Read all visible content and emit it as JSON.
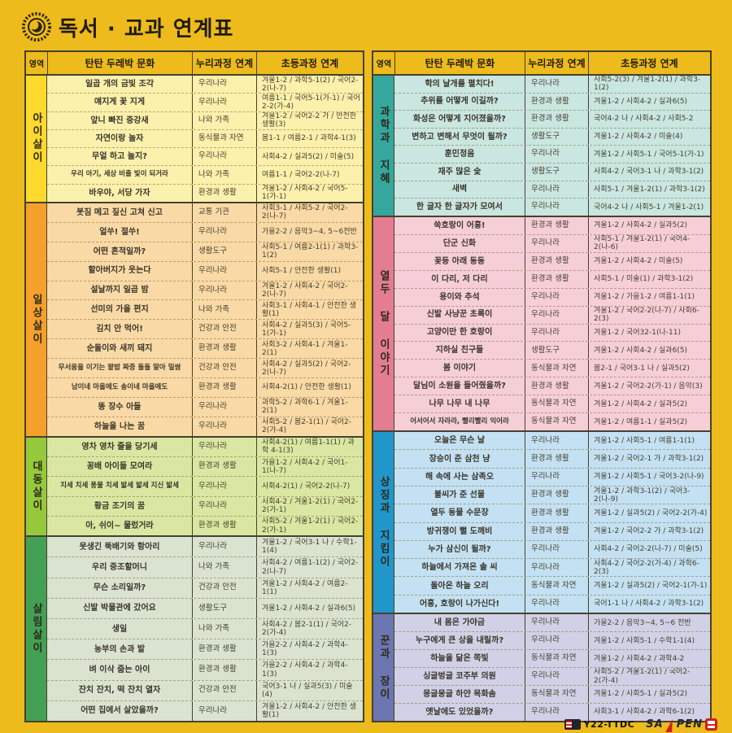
{
  "page": {
    "title": "독서 · 교과 연계표"
  },
  "table_headers": [
    "영역",
    "탄탄 두레박 문화",
    "누리과정 연계",
    "초등과정 연계"
  ],
  "accent": {
    "page_bg": "#EDBB1C",
    "line": "#45412F"
  },
  "tables": [
    {
      "sections": [
        {
          "area": "아이살이",
          "area_color": "#FFD92E",
          "row_color": "#FBF0AC",
          "rows": [
            [
              "일곱 개의 금빛 조각",
              "우리나라",
              "겨울1-2 / 과학5-1(2) / 국어2-2(나-7)"
            ],
            [
              "얘지게 꽃 지게",
              "우리나라",
              "여름1-1 / 국어5-1(가-1) / 국어2-2(가-4)"
            ],
            [
              "앞니 빠진 중강새",
              "나와 가족",
              "겨울1-2 / 국어2-2 가 / 안전한 생활(3)"
            ],
            [
              "자연이랑 놀자",
              "동식물과 자연",
              "봄1-1 / 여름2-1 / 과학4-1(3)"
            ],
            [
              "무얼 하고 놀지?",
              "우리나라",
              "사회4-2 / 실과5(2) / 미술(5)"
            ],
            [
              "우리 아기, 세상 비출 빛이 되거라",
              "나와 가족",
              "여름1-1 / 국어2-2(나-7)"
            ],
            [
              "바우야, 서당 가자",
              "환경과 생활",
              "겨울1-2 / 사회4-2 / 국어5-1(가-1)"
            ]
          ]
        },
        {
          "area": "일상살이",
          "area_color": "#F5A02B",
          "row_color": "#F9D9A5",
          "rows": [
            [
              "봇짐 메고 짚신 고쳐 신고",
              "교통 기관",
              "사회3-1 / 사회5-2 / 국어2-2(나-7)"
            ],
            [
              "얼쑤! 절쑤!",
              "우리나라",
              "가을2-2 / 음악3~4, 5~6전반"
            ],
            [
              "어떤 흔적일까?",
              "생활도구",
              "사회5-1 / 여름2-1(1) / 과학3-1(2)"
            ],
            [
              "할아버지가 웃는다",
              "우리나라",
              "사회5-1 / 안전한 생활(1)"
            ],
            [
              "설날까지 일곱 밤",
              "우리나라",
              "겨울1-2 / 사회4-2 / 국어2-2(나-7)"
            ],
            [
              "선미의 가을 편지",
              "나와 가족",
              "사회3-1 / 사회4-1 / 안전한 생활(1)"
            ],
            [
              "김치 안 먹어!",
              "건강과 안전",
              "사회4-2 / 실과5(3) / 국어5-1(가-1)"
            ],
            [
              "순둘이와 새끼 돼지",
              "환경과 생활",
              "사회3-2 / 사회4-1 / 겨울1-2(1)"
            ],
            [
              "무서움을 이기는 팥밥 짜증 돌돌 말아 밀쌈",
              "건강과 안전",
              "사회4-2 / 실과5(2) / 국어2-2(나-7)"
            ],
            [
              "남이네 마을에도 송이네 마을에도",
              "환경과 생활",
              "사회4-2(1) / 안전한 생활(1)"
            ],
            [
              "똥 장수 아들",
              "우리나라",
              "과학5-2 / 과학6-1 / 겨울1-2(1)"
            ],
            [
              "하늘을 나는 꿈",
              "우리나라",
              "사회5-2 / 봄2-1(1) / 국어2-2(가-4)"
            ]
          ]
        },
        {
          "area": "대동살이",
          "area_color": "#96C83C",
          "row_color": "#D9E7A2",
          "rows": [
            [
              "영차 영차 줄을 당기세",
              "우리나라",
              "사회4-2(1) / 여름1-1(1) / 과학 4-1(3)"
            ],
            [
              "꽁배 아이들 모여라",
              "환경과 생활",
              "가을1-2 / 사회4-2 / 국어1-1(나-7)"
            ],
            [
              "치세 치세 풍물 치세 밟세 밟세 지신 밟세",
              "우리나라",
              "사회4-2(1) / 국어2-2(나-7)"
            ],
            [
              "황금 조기의 꿈",
              "우리나라",
              "사회4-2 / 겨울1-2(1) / 국어2-2(가-1)"
            ],
            [
              "아, 쉬이~ 물렀거라",
              "환경과 생활",
              "사회5-2 / 겨울1-2(1) / 국어2-2(가-1)"
            ]
          ]
        },
        {
          "area": "살림살이",
          "area_color": "#44A054",
          "row_color": "#D9E3D0",
          "rows": [
            [
              "못생긴 뚝배기와 항아리",
              "우리나라",
              "겨울1-2 / 국어3-1 나 / 수학1-1(4)"
            ],
            [
              "우리 증조할머니",
              "나와 가족",
              "사회4-2 / 여름1-1(2) / 국어2-2(나-7)"
            ],
            [
              "무슨 소리일까?",
              "건강과 안전",
              "겨울1-2 / 사회4-2 / 여름2-1(1)"
            ],
            [
              "신발 박물관에 갔어요",
              "생활도구",
              "겨울1-2 / 사회4-2 / 실과6(5)"
            ],
            [
              "생일",
              "나와 가족",
              "사회4-2 / 봄2-1(1) / 국어2-2(가-4)"
            ],
            [
              "농부의 손과 발",
              "환경과 생활",
              "가을2-2 / 사회4-2 / 과학4-1(3)"
            ],
            [
              "벼 이삭 줍는 아이",
              "환경과 생활",
              "가을2-2 / 사회4-2 / 과학4-1(3)"
            ],
            [
              "잔치 잔치, 떡 잔치 열자",
              "건강과 안전",
              "국어3-1 나 / 실과5(3) / 미술(4)"
            ],
            [
              "어떤 집에서 살았을까?",
              "우리나라",
              "겨울1-2 / 사회4-2 / 안전한 생활(1)"
            ]
          ]
        }
      ]
    },
    {
      "sections": [
        {
          "area": "과학과 지혜",
          "area_color": "#35A79C",
          "row_color": "#C9E6E0",
          "rows": [
            [
              "학의 날개를 펼치다!",
              "우리나라",
              "사회5-2(3) / 겨울1-2(1) / 과학3-1(2)"
            ],
            [
              "추위를 어떻게 이길까?",
              "환경과 생활",
              "겨울1-2 / 사회4-2 / 실과6(5)"
            ],
            [
              "화성은 어떻게 지어졌을까?",
              "환경과 생활",
              "국어4-2 나 / 사회4-2 / 사회5-2"
            ],
            [
              "변하고 변해서 무엇이 될까?",
              "생활도구",
              "겨울1-2 / 사회4-2 / 미술(4)"
            ],
            [
              "훈민정음",
              "우리나라",
              "겨울1-2 / 사회5-1 / 국어5-1(가-1)"
            ],
            [
              "재주 많은 숯",
              "생활도구",
              "사회4-2 / 국어3-1 나 / 과학3-1(2)"
            ],
            [
              "새벽",
              "우리나라",
              "사회5-1 / 겨울1-2(1) / 과학3-1(2)"
            ],
            [
              "한 글자 한 글자가 모여서",
              "우리나라",
              "국어4-2 나 / 사회5-1 / 겨울1-2(1)"
            ]
          ]
        },
        {
          "area": "열두 달 이야기",
          "area_color": "#E47D92",
          "row_color": "#F6CED7",
          "rows": [
            [
              "쑥호랑이 어흥!",
              "환경과 생활",
              "겨울1-2 / 사회4-2 / 실과5(2)"
            ],
            [
              "단군 신화",
              "우리나라",
              "사회5-1 / 겨울1-2(1) / 국어4-2(나-6)"
            ],
            [
              "꽃등 아래 동동",
              "환경과 생활",
              "겨울1-2 / 사회4-2 / 미술(5)"
            ],
            [
              "이 다리, 저 다리",
              "환경과 생활",
              "사회5-1 / 미술(1) / 과학3-1(2)"
            ],
            [
              "용이와 추석",
              "우리나라",
              "겨울1-2 / 가을1-2 / 여름1-1(1)"
            ],
            [
              "신발 사냥꾼 초록이",
              "우리나라",
              "겨울1-2 / 국어2-2(나-7) / 사회6-2(3)"
            ],
            [
              "고양이만 한 호랑이",
              "우리나라",
              "겨울1-2 / 국어32-1(나-11)"
            ],
            [
              "지하실 친구들",
              "생활도구",
              "겨울1-2 / 사회4-2 / 실과6(5)"
            ],
            [
              "봄 이야기",
              "동식물과 자연",
              "봄2-1 / 국어3-1 나 / 실과5(2)"
            ],
            [
              "달님이 소원을 들어줬을까?",
              "환경과 생활",
              "겨울1-2 / 국어2-2(가-1) / 음악(3)"
            ],
            [
              "나무 나무 내 나무",
              "동식물과 자연",
              "겨울1-2 / 사회4-2 / 실과5(2)"
            ],
            [
              "어서어서 자라라, 빨리빨리 익어라",
              "동식물과 자연",
              "겨울1-2 / 여름1-1 / 실과5(2)"
            ]
          ]
        },
        {
          "area": "상징과 지킴이",
          "area_color": "#2196CB",
          "row_color": "#C3E1F2",
          "rows": [
            [
              "오늘은 무슨 날",
              "우리나라",
              "겨울1-2 / 사회5-1 / 여름1-1(1)"
            ],
            [
              "장승이 준 삼천 냥",
              "환경과 생활",
              "겨울1-2 / 국어2-1 가 / 과학3-1(2)"
            ],
            [
              "해 속에 사는 삼족오",
              "우리나라",
              "겨울1-2 / 사회5-1 / 국어3-2(나-9)"
            ],
            [
              "불씨가 준 선물",
              "환경과 생활",
              "겨울1-2 / 과학3-1(2) / 국어3-2(나-9)"
            ],
            [
              "열두 동물 수문장",
              "환경과 생활",
              "겨울1-2 / 실과5(2) / 국어2-2(가-4)"
            ],
            [
              "방귀쟁이 뻘 도깨비",
              "환경과 생활",
              "겨울1-2 / 국어2-2 가 / 과학3-1(2)"
            ],
            [
              "누가 삼신이 될까?",
              "우리나라",
              "사회4-2 / 국어2-2(나-7) / 미술(5)"
            ],
            [
              "하늘에서 가져온 솔 씨",
              "우리나라",
              "사회4-2 / 국어2-2(가-4) / 과학6-2(3)"
            ],
            [
              "돌아온 하늘 오리",
              "동식물과 자연",
              "겨울1-2 / 실과5(2) / 국어2-1(가-1)"
            ],
            [
              "어흥, 호랑이 나가신다!",
              "우리나라",
              "국어1-1 나 / 사회4-2 / 과학3-1(2)"
            ]
          ]
        },
        {
          "area": "꾼과 장이",
          "area_color": "#6C76B1",
          "row_color": "#D0D1E6",
          "rows": [
            [
              "내 몸은 가야금",
              "우리나라",
              "가을2-2 / 음악3~4, 5~6 전반"
            ],
            [
              "누구에게 큰 상을 내릴까?",
              "우리나라",
              "겨울1-2 / 사회5-1 / 수학1-1(4)"
            ],
            [
              "하늘을 닮은 쪽빛",
              "동식물과 자연",
              "겨울1-2 / 사회4-2 / 과학4-2"
            ],
            [
              "싱글벙글 코주부 의원",
              "우리나라",
              "사회5-2 / 겨울1-2(1) / 국어2-2(가-4)"
            ],
            [
              "몽글몽글 하얀 목화솜",
              "동식물과 자연",
              "겨울1-2 / 사회5-1 / 실과5(2)"
            ],
            [
              "옛날에도 있었을까?",
              "우리나라",
              "사회3-1 / 사회4-2 / 과학6-1(2)"
            ]
          ]
        }
      ]
    }
  ],
  "footer": {
    "ttdc_label": "Y22-TTDC",
    "saypen_left": "SA",
    "saypen_right": "PEN"
  }
}
